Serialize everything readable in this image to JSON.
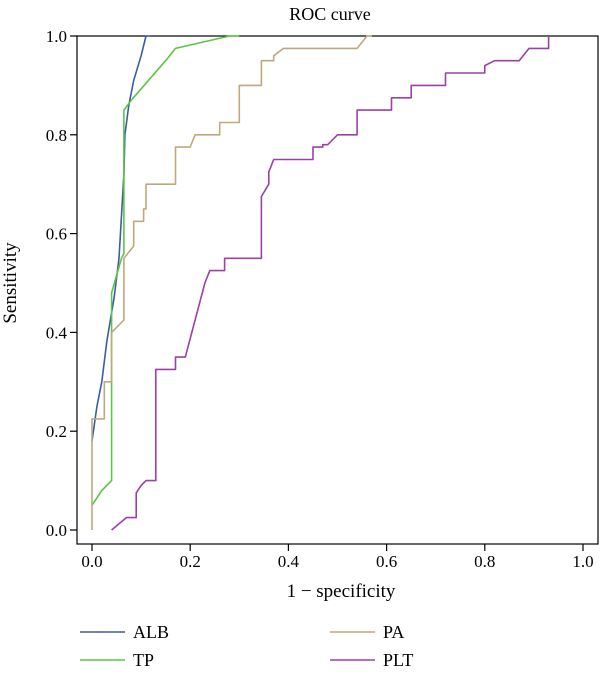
{
  "chart_data": {
    "type": "line",
    "title": "ROC curve",
    "xlabel": "1 − specificity",
    "ylabel": "Sensitivity",
    "xlim": [
      0,
      1
    ],
    "ylim": [
      0,
      1
    ],
    "xticks": [
      "0.0",
      "0.2",
      "0.4",
      "0.6",
      "0.8",
      "1.0"
    ],
    "yticks": [
      "0.0",
      "0.2",
      "0.4",
      "0.6",
      "0.8",
      "1.0"
    ],
    "grid": false,
    "legend_position": "bottom",
    "series": [
      {
        "name": "ALB",
        "color": "#3a5da6",
        "points": [
          [
            0.0,
            0.18
          ],
          [
            0.01,
            0.25
          ],
          [
            0.02,
            0.3
          ],
          [
            0.03,
            0.38
          ],
          [
            0.045,
            0.47
          ],
          [
            0.055,
            0.55
          ],
          [
            0.065,
            0.72
          ],
          [
            0.067,
            0.8
          ],
          [
            0.075,
            0.86
          ],
          [
            0.085,
            0.91
          ],
          [
            0.1,
            0.96
          ],
          [
            0.11,
            1.0
          ],
          [
            0.12,
            1.0
          ]
        ]
      },
      {
        "name": "TP",
        "color": "#5cc544",
        "points": [
          [
            0.0,
            0.05
          ],
          [
            0.02,
            0.08
          ],
          [
            0.04,
            0.1
          ],
          [
            0.04,
            0.48
          ],
          [
            0.06,
            0.55
          ],
          [
            0.065,
            0.56
          ],
          [
            0.065,
            0.85
          ],
          [
            0.08,
            0.87
          ],
          [
            0.15,
            0.95
          ],
          [
            0.17,
            0.975
          ],
          [
            0.28,
            1.0
          ],
          [
            0.3,
            1.0
          ]
        ]
      },
      {
        "name": "PA",
        "color": "#bfa97a",
        "points": [
          [
            0.0,
            0.0
          ],
          [
            0.0,
            0.225
          ],
          [
            0.025,
            0.225
          ],
          [
            0.025,
            0.3
          ],
          [
            0.04,
            0.3
          ],
          [
            0.04,
            0.4
          ],
          [
            0.065,
            0.425
          ],
          [
            0.065,
            0.55
          ],
          [
            0.085,
            0.575
          ],
          [
            0.085,
            0.625
          ],
          [
            0.105,
            0.625
          ],
          [
            0.105,
            0.65
          ],
          [
            0.11,
            0.65
          ],
          [
            0.11,
            0.7
          ],
          [
            0.17,
            0.7
          ],
          [
            0.17,
            0.775
          ],
          [
            0.2,
            0.775
          ],
          [
            0.21,
            0.8
          ],
          [
            0.26,
            0.8
          ],
          [
            0.26,
            0.825
          ],
          [
            0.3,
            0.825
          ],
          [
            0.3,
            0.9
          ],
          [
            0.345,
            0.9
          ],
          [
            0.345,
            0.95
          ],
          [
            0.37,
            0.95
          ],
          [
            0.37,
            0.96
          ],
          [
            0.39,
            0.975
          ],
          [
            0.54,
            0.975
          ],
          [
            0.56,
            1.0
          ],
          [
            0.57,
            1.0
          ]
        ]
      },
      {
        "name": "PLT",
        "color": "#9b41a6",
        "points": [
          [
            0.04,
            0.0
          ],
          [
            0.07,
            0.025
          ],
          [
            0.09,
            0.025
          ],
          [
            0.09,
            0.075
          ],
          [
            0.1,
            0.09
          ],
          [
            0.11,
            0.1
          ],
          [
            0.13,
            0.1
          ],
          [
            0.13,
            0.325
          ],
          [
            0.17,
            0.325
          ],
          [
            0.17,
            0.35
          ],
          [
            0.19,
            0.35
          ],
          [
            0.23,
            0.5
          ],
          [
            0.24,
            0.525
          ],
          [
            0.27,
            0.525
          ],
          [
            0.27,
            0.55
          ],
          [
            0.345,
            0.55
          ],
          [
            0.345,
            0.675
          ],
          [
            0.36,
            0.7
          ],
          [
            0.36,
            0.725
          ],
          [
            0.37,
            0.75
          ],
          [
            0.45,
            0.75
          ],
          [
            0.45,
            0.775
          ],
          [
            0.47,
            0.775
          ],
          [
            0.47,
            0.78
          ],
          [
            0.48,
            0.78
          ],
          [
            0.5,
            0.8
          ],
          [
            0.54,
            0.8
          ],
          [
            0.54,
            0.85
          ],
          [
            0.61,
            0.85
          ],
          [
            0.61,
            0.875
          ],
          [
            0.65,
            0.875
          ],
          [
            0.65,
            0.9
          ],
          [
            0.72,
            0.9
          ],
          [
            0.72,
            0.925
          ],
          [
            0.8,
            0.925
          ],
          [
            0.8,
            0.94
          ],
          [
            0.82,
            0.95
          ],
          [
            0.85,
            0.95
          ],
          [
            0.87,
            0.95
          ],
          [
            0.89,
            0.975
          ],
          [
            0.93,
            0.975
          ],
          [
            0.93,
            1.0
          ]
        ]
      }
    ]
  }
}
